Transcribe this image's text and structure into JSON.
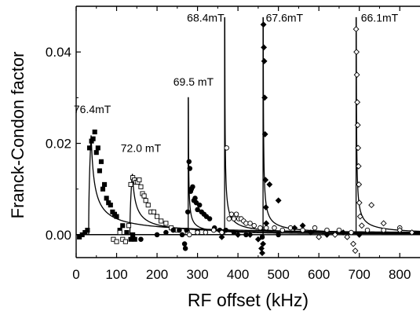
{
  "chart_data": {
    "type": "scatter",
    "xlabel": "RF offset (kHz)",
    "ylabel": "Franck-Condon factor",
    "xlim": [
      0,
      850
    ],
    "ylim": [
      -0.005,
      0.05
    ],
    "xticks": [
      "0",
      "100",
      "200",
      "300",
      "400",
      "500",
      "600",
      "700",
      "800"
    ],
    "xtick_values": [
      0,
      100,
      200,
      300,
      400,
      500,
      600,
      700,
      800
    ],
    "yticks": [
      "0.00",
      "0.02",
      "0.04"
    ],
    "ytick_values": [
      0,
      0.02,
      0.04
    ],
    "series": [
      {
        "name": "76.4mT",
        "marker": "filled-square",
        "threshold": 31,
        "peak": 0.022,
        "label_at": [
          40,
          0.0275
        ],
        "points": [
          [
            8,
            -0.0005
          ],
          [
            15,
            0
          ],
          [
            22,
            0.0005
          ],
          [
            28,
            0.001
          ],
          [
            33,
            0.019
          ],
          [
            38,
            0.0205
          ],
          [
            42,
            0.021
          ],
          [
            46,
            0.0225
          ],
          [
            50,
            0.018
          ],
          [
            54,
            0.019
          ],
          [
            58,
            0.014
          ],
          [
            62,
            0.016
          ],
          [
            66,
            0.01
          ],
          [
            70,
            0.011
          ],
          [
            75,
            0.008
          ],
          [
            80,
            0.007
          ],
          [
            85,
            0.0065
          ],
          [
            90,
            0.005
          ],
          [
            95,
            0.0045
          ],
          [
            100,
            0.004
          ],
          [
            108,
            0.001
          ],
          [
            115,
            0.002
          ],
          [
            125,
            0.0005
          ],
          [
            135,
            -0.001
          ],
          [
            140,
            0
          ],
          [
            145,
            -0.001
          ]
        ]
      },
      {
        "name": "72.0 mT",
        "marker": "open-square",
        "threshold": 133,
        "peak": 0.0135,
        "label_at": [
          160,
          0.019
        ],
        "points": [
          [
            92,
            -0.001
          ],
          [
            100,
            -0.0015
          ],
          [
            108,
            0.0005
          ],
          [
            115,
            -0.001
          ],
          [
            122,
            -0.0015
          ],
          [
            130,
            0.002
          ],
          [
            135,
            0.011
          ],
          [
            140,
            0.0125
          ],
          [
            144,
            0.012
          ],
          [
            148,
            0.0115
          ],
          [
            152,
            0.0115
          ],
          [
            156,
            0.012
          ],
          [
            160,
            0.0105
          ],
          [
            164,
            0.009
          ],
          [
            168,
            0.0085
          ],
          [
            172,
            0.0075
          ],
          [
            178,
            0.0065
          ],
          [
            185,
            0.005
          ],
          [
            192,
            0.005
          ],
          [
            200,
            0.004
          ],
          [
            210,
            0.003
          ],
          [
            222,
            0.0025
          ],
          [
            235,
            0.0015
          ],
          [
            250,
            0.001
          ],
          [
            275,
            0.0005
          ],
          [
            300,
            0.0005
          ]
        ]
      },
      {
        "name": "69.5 mT",
        "marker": "filled-circle",
        "threshold": 277,
        "peak": 0.03,
        "label_at": [
          290,
          0.0335
        ],
        "points": [
          [
            140,
            -0.0005
          ],
          [
            160,
            -0.001
          ],
          [
            200,
            0
          ],
          [
            222,
            0.0005
          ],
          [
            240,
            0.001
          ],
          [
            255,
            0.001
          ],
          [
            262,
            0
          ],
          [
            268,
            -0.002
          ],
          [
            270,
            -0.003
          ],
          [
            273,
            0.001
          ],
          [
            276,
            0.005
          ],
          [
            279,
            0.016
          ],
          [
            281,
            0.0145
          ],
          [
            283,
            0.0095
          ],
          [
            285,
            0.01
          ],
          [
            288,
            0.0105
          ],
          [
            291,
            0.0075
          ],
          [
            294,
            0.008
          ],
          [
            297,
            0.007
          ],
          [
            300,
            0.0055
          ],
          [
            305,
            0.0065
          ],
          [
            310,
            0.005
          ],
          [
            316,
            0.0045
          ],
          [
            322,
            0.004
          ],
          [
            330,
            0.0035
          ],
          [
            342,
            0.0015
          ],
          [
            355,
            0.001
          ],
          [
            370,
            0.001
          ],
          [
            390,
            0.0005
          ],
          [
            420,
            0
          ],
          [
            460,
            -0.0005
          ],
          [
            500,
            0
          ]
        ]
      },
      {
        "name": "68.4mT",
        "marker": "open-circle",
        "threshold": 367,
        "peak": 0.0475,
        "label_at": [
          320,
          0.0475
        ],
        "points": [
          [
            280,
            0
          ],
          [
            300,
            0.0005
          ],
          [
            320,
            0.0005
          ],
          [
            340,
            0.001
          ],
          [
            360,
            0.0005
          ],
          [
            372,
            0.019
          ],
          [
            378,
            0.0035
          ],
          [
            384,
            0.0045
          ],
          [
            390,
            0.0035
          ],
          [
            396,
            0.0045
          ],
          [
            402,
            0.0035
          ],
          [
            408,
            0.0035
          ],
          [
            414,
            0.003
          ],
          [
            420,
            0.0025
          ],
          [
            430,
            0.0025
          ],
          [
            440,
            0.002
          ],
          [
            455,
            0.0015
          ],
          [
            470,
            0.0015
          ],
          [
            490,
            0.0015
          ],
          [
            510,
            0.001
          ],
          [
            530,
            0.0015
          ],
          [
            560,
            0.001
          ],
          [
            590,
            0.0015
          ],
          [
            620,
            0.001
          ],
          [
            650,
            0.001
          ],
          [
            680,
            0.0005
          ],
          [
            720,
            0.001
          ],
          [
            760,
            0.001
          ],
          [
            800,
            0.0015
          ]
        ]
      },
      {
        "name": "67.6mT",
        "marker": "filled-diamond",
        "threshold": 462,
        "peak": 0.0475,
        "label_at": [
          515,
          0.0475
        ],
        "points": [
          [
            360,
            -0.0005
          ],
          [
            400,
            0
          ],
          [
            430,
            0
          ],
          [
            450,
            -0.001
          ],
          [
            458,
            -0.003
          ],
          [
            460,
            -0.004
          ],
          [
            462,
            -0.002
          ],
          [
            463,
            0.046
          ],
          [
            464,
            0.041
          ],
          [
            465,
            0.038
          ],
          [
            466,
            0.03
          ],
          [
            467,
            0.022
          ],
          [
            468,
            0.012
          ],
          [
            469,
            0.006
          ],
          [
            470,
            0.0025
          ],
          [
            478,
            0.011
          ],
          [
            500,
            0.0075
          ],
          [
            540,
            0.0015
          ],
          [
            560,
            0.002
          ],
          [
            580,
            0.0005
          ],
          [
            620,
            0
          ],
          [
            660,
            0.0005
          ],
          [
            700,
            0
          ]
        ]
      },
      {
        "name": "66.1mT",
        "marker": "open-diamond",
        "threshold": 692,
        "peak": 0.0475,
        "label_at": [
          750,
          0.0475
        ],
        "points": [
          [
            600,
            -0.0005
          ],
          [
            640,
            0
          ],
          [
            670,
            -0.0005
          ],
          [
            685,
            -0.002
          ],
          [
            690,
            -0.0035
          ],
          [
            692,
            0.045
          ],
          [
            693,
            0.04
          ],
          [
            694,
            0.035
          ],
          [
            695,
            0.029
          ],
          [
            696,
            0.024
          ],
          [
            697,
            0.019
          ],
          [
            698,
            0.015
          ],
          [
            699,
            0.011
          ],
          [
            700,
            0.007
          ],
          [
            702,
            0.004
          ],
          [
            706,
            0.002
          ],
          [
            730,
            0.0065
          ],
          [
            760,
            0.0025
          ],
          [
            800,
            0.001
          ],
          [
            830,
            0.0005
          ]
        ]
      }
    ]
  }
}
